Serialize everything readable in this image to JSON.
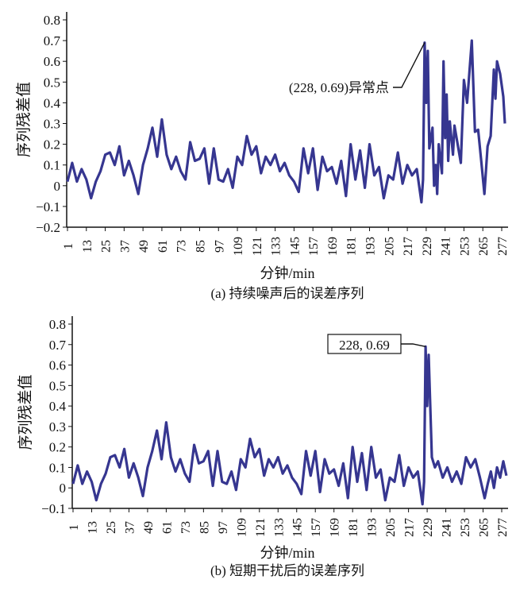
{
  "colors": {
    "line": "#363690",
    "axis": "#111111"
  },
  "chart_data": [
    {
      "type": "line",
      "caption": "(a) 持续噪声后的误差序列",
      "xlabel": "分钟/min",
      "ylabel": "序列残差值",
      "ylim": [
        -0.2,
        0.8
      ],
      "xlim": [
        1,
        280
      ],
      "yticks": [
        -0.2,
        -0.1,
        0,
        0.1,
        0.2,
        0.3,
        0.4,
        0.5,
        0.6,
        0.7,
        0.8
      ],
      "ytick_labels": [
        "−0.2",
        "−0.1",
        "0",
        "0.1",
        "0.2",
        "0.3",
        "0.4",
        "0.5",
        "0.6",
        "0.7",
        "0.8"
      ],
      "xticks": [
        1,
        13,
        25,
        37,
        49,
        61,
        73,
        85,
        97,
        109,
        121,
        133,
        145,
        157,
        169,
        181,
        193,
        205,
        217,
        229,
        241,
        253,
        265,
        277
      ],
      "xtick_labels": [
        "1",
        "13",
        "25",
        "37",
        "49",
        "61",
        "73",
        "85",
        "97",
        "109",
        "121",
        "133",
        "145",
        "157",
        "169",
        "181",
        "193",
        "205",
        "217",
        "229",
        "241",
        "253",
        "265",
        "277"
      ],
      "annotation": {
        "text": "(228, 0.69)异常点",
        "x": 228,
        "y": 0.69
      },
      "x": [
        1,
        4,
        7,
        10,
        13,
        16,
        19,
        22,
        25,
        28,
        31,
        34,
        37,
        40,
        43,
        46,
        49,
        52,
        55,
        58,
        61,
        64,
        67,
        70,
        73,
        76,
        79,
        82,
        85,
        88,
        91,
        94,
        97,
        100,
        103,
        106,
        109,
        112,
        115,
        118,
        121,
        124,
        127,
        130,
        133,
        136,
        139,
        142,
        145,
        148,
        151,
        154,
        157,
        160,
        163,
        166,
        169,
        172,
        175,
        178,
        181,
        184,
        187,
        190,
        193,
        196,
        199,
        202,
        205,
        208,
        211,
        214,
        217,
        220,
        223,
        226,
        227,
        228,
        229,
        230,
        231,
        233,
        234,
        235,
        236,
        237,
        239,
        240,
        241,
        242,
        243,
        244,
        246,
        247,
        249,
        251,
        253,
        255,
        258,
        260,
        262,
        264,
        266,
        268,
        270,
        272,
        273,
        274,
        276,
        278,
        279
      ],
      "y": [
        0.02,
        0.11,
        0.02,
        0.08,
        0.03,
        -0.06,
        0.02,
        0.07,
        0.15,
        0.16,
        0.1,
        0.19,
        0.05,
        0.12,
        0.05,
        -0.04,
        0.1,
        0.18,
        0.28,
        0.14,
        0.32,
        0.15,
        0.08,
        0.14,
        0.07,
        0.03,
        0.21,
        0.12,
        0.13,
        0.18,
        0.01,
        0.18,
        0.03,
        0.02,
        0.08,
        -0.01,
        0.14,
        0.1,
        0.24,
        0.15,
        0.19,
        0.06,
        0.14,
        0.1,
        0.15,
        0.07,
        0.11,
        0.05,
        0.02,
        -0.03,
        0.18,
        0.06,
        0.18,
        -0.02,
        0.14,
        0.07,
        0.09,
        0.01,
        0.12,
        -0.05,
        0.2,
        0.03,
        0.17,
        -0.01,
        0.2,
        0.05,
        0.09,
        -0.06,
        0.05,
        0.03,
        0.16,
        0.01,
        0.1,
        0.05,
        0.08,
        -0.08,
        0.03,
        0.69,
        0.4,
        0.65,
        0.18,
        0.28,
        0.0,
        0.1,
        -0.04,
        0.2,
        0.06,
        0.6,
        0.23,
        0.44,
        0.12,
        0.31,
        0.15,
        0.29,
        0.2,
        0.11,
        0.51,
        0.4,
        0.7,
        0.26,
        0.27,
        0.12,
        -0.04,
        0.19,
        0.24,
        0.56,
        0.42,
        0.6,
        0.54,
        0.43,
        0.3
      ]
    },
    {
      "type": "line",
      "caption": "(b) 短期干扰后的误差序列",
      "xlabel": "分钟/min",
      "ylabel": "序列残差值",
      "ylim": [
        -0.1,
        0.8
      ],
      "xlim": [
        1,
        280
      ],
      "yticks": [
        -0.1,
        0,
        0.1,
        0.2,
        0.3,
        0.4,
        0.5,
        0.6,
        0.7,
        0.8
      ],
      "ytick_labels": [
        "−0.1",
        "0",
        "0.1",
        "0.2",
        "0.3",
        "0.4",
        "0.5",
        "0.6",
        "0.7",
        "0.8"
      ],
      "xticks": [
        1,
        13,
        25,
        37,
        49,
        61,
        73,
        85,
        97,
        109,
        121,
        133,
        145,
        157,
        169,
        181,
        193,
        205,
        217,
        229,
        241,
        253,
        265,
        277
      ],
      "xtick_labels": [
        "1",
        "13",
        "25",
        "37",
        "49",
        "61",
        "73",
        "85",
        "97",
        "109",
        "121",
        "133",
        "145",
        "157",
        "169",
        "181",
        "193",
        "205",
        "217",
        "229",
        "241",
        "253",
        "265",
        "277"
      ],
      "annotation": {
        "text": "228, 0.69",
        "x": 228,
        "y": 0.69
      },
      "x": [
        1,
        4,
        7,
        10,
        13,
        16,
        19,
        22,
        25,
        28,
        31,
        34,
        37,
        40,
        43,
        46,
        49,
        52,
        55,
        58,
        61,
        64,
        67,
        70,
        73,
        76,
        79,
        82,
        85,
        88,
        91,
        94,
        97,
        100,
        103,
        106,
        109,
        112,
        115,
        118,
        121,
        124,
        127,
        130,
        133,
        136,
        139,
        142,
        145,
        148,
        151,
        154,
        157,
        160,
        163,
        166,
        169,
        172,
        175,
        178,
        181,
        184,
        187,
        190,
        193,
        196,
        199,
        202,
        205,
        208,
        211,
        214,
        217,
        220,
        223,
        226,
        227,
        228,
        229,
        230,
        232,
        234,
        236,
        239,
        242,
        245,
        248,
        251,
        254,
        257,
        260,
        263,
        266,
        268,
        270,
        272,
        274,
        276,
        278,
        280
      ],
      "y": [
        0.02,
        0.11,
        0.02,
        0.08,
        0.03,
        -0.06,
        0.02,
        0.07,
        0.15,
        0.16,
        0.1,
        0.19,
        0.05,
        0.12,
        0.05,
        -0.04,
        0.1,
        0.18,
        0.28,
        0.14,
        0.32,
        0.15,
        0.08,
        0.14,
        0.07,
        0.03,
        0.21,
        0.12,
        0.13,
        0.18,
        0.01,
        0.18,
        0.03,
        0.02,
        0.08,
        -0.01,
        0.14,
        0.1,
        0.24,
        0.15,
        0.19,
        0.06,
        0.14,
        0.1,
        0.15,
        0.07,
        0.11,
        0.05,
        0.02,
        -0.03,
        0.18,
        0.06,
        0.18,
        -0.02,
        0.14,
        0.07,
        0.09,
        0.01,
        0.12,
        -0.05,
        0.2,
        0.03,
        0.17,
        -0.01,
        0.2,
        0.05,
        0.09,
        -0.06,
        0.05,
        0.03,
        0.16,
        0.01,
        0.1,
        0.05,
        0.08,
        -0.08,
        0.03,
        0.69,
        0.4,
        0.65,
        0.15,
        0.1,
        0.13,
        0.05,
        0.1,
        0.03,
        0.08,
        0.02,
        0.15,
        0.1,
        0.14,
        0.05,
        -0.05,
        0.02,
        0.08,
        0.0,
        0.1,
        0.05,
        0.13,
        0.06
      ]
    }
  ]
}
